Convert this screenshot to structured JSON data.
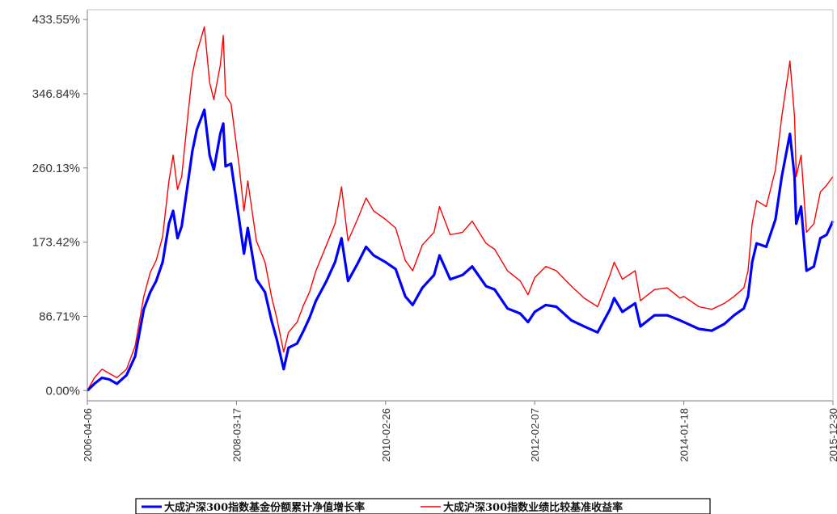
{
  "chart_data": {
    "type": "line",
    "title": "",
    "xlabel": "",
    "ylabel": "",
    "y_axis": {
      "ticks": [
        0,
        86.71,
        173.42,
        260.13,
        346.84,
        433.55
      ],
      "tick_labels": [
        "0.00%",
        "86.71%",
        "173.42%",
        "260.13%",
        "346.84%",
        "433.55%"
      ],
      "ylim": [
        -12,
        445
      ]
    },
    "x_axis": {
      "ticks": [
        "2006-04-06",
        "2008-03-17",
        "2010-02-26",
        "2012-02-07",
        "2014-01-18",
        "2015-12-30"
      ],
      "xlim": [
        "2006-04-06",
        "2015-12-30"
      ]
    },
    "grid": false,
    "legend_position": "bottom-center",
    "series": [
      {
        "name": "大成沪深300指数基金份额累计净值增长率",
        "color": "#0000ff",
        "points": [
          [
            "2006-04-06",
            0
          ],
          [
            "2006-05-10",
            8
          ],
          [
            "2006-06-15",
            15
          ],
          [
            "2006-07-20",
            13
          ],
          [
            "2006-08-25",
            8
          ],
          [
            "2006-10-10",
            18
          ],
          [
            "2006-11-20",
            40
          ],
          [
            "2006-12-31",
            95
          ],
          [
            "2007-01-31",
            115
          ],
          [
            "2007-02-28",
            128
          ],
          [
            "2007-03-31",
            150
          ],
          [
            "2007-04-30",
            195
          ],
          [
            "2007-05-20",
            210
          ],
          [
            "2007-06-10",
            178
          ],
          [
            "2007-06-30",
            192
          ],
          [
            "2007-07-31",
            245
          ],
          [
            "2007-08-20",
            280
          ],
          [
            "2007-09-10",
            305
          ],
          [
            "2007-10-16",
            328
          ],
          [
            "2007-11-10",
            275
          ],
          [
            "2007-11-30",
            258
          ],
          [
            "2007-12-31",
            300
          ],
          [
            "2008-01-14",
            312
          ],
          [
            "2008-01-25",
            262
          ],
          [
            "2008-02-20",
            265
          ],
          [
            "2008-03-31",
            198
          ],
          [
            "2008-04-22",
            160
          ],
          [
            "2008-05-10",
            190
          ],
          [
            "2008-06-20",
            130
          ],
          [
            "2008-07-31",
            115
          ],
          [
            "2008-08-31",
            82
          ],
          [
            "2008-09-25",
            60
          ],
          [
            "2008-10-28",
            25
          ],
          [
            "2008-11-20",
            50
          ],
          [
            "2008-12-31",
            55
          ],
          [
            "2009-01-31",
            70
          ],
          [
            "2009-02-28",
            85
          ],
          [
            "2009-03-31",
            105
          ],
          [
            "2009-05-20",
            128
          ],
          [
            "2009-06-30",
            150
          ],
          [
            "2009-07-31",
            178
          ],
          [
            "2009-08-31",
            128
          ],
          [
            "2009-10-15",
            148
          ],
          [
            "2009-11-25",
            168
          ],
          [
            "2009-12-31",
            158
          ],
          [
            "2010-02-26",
            150
          ],
          [
            "2010-04-15",
            142
          ],
          [
            "2010-05-31",
            110
          ],
          [
            "2010-07-05",
            100
          ],
          [
            "2010-08-20",
            120
          ],
          [
            "2010-10-15",
            135
          ],
          [
            "2010-11-10",
            158
          ],
          [
            "2010-12-31",
            130
          ],
          [
            "2011-02-28",
            135
          ],
          [
            "2011-04-15",
            145
          ],
          [
            "2011-06-20",
            122
          ],
          [
            "2011-07-31",
            118
          ],
          [
            "2011-09-30",
            96
          ],
          [
            "2011-11-30",
            90
          ],
          [
            "2012-01-06",
            80
          ],
          [
            "2012-02-07",
            92
          ],
          [
            "2012-03-31",
            100
          ],
          [
            "2012-05-20",
            98
          ],
          [
            "2012-07-31",
            82
          ],
          [
            "2012-09-30",
            75
          ],
          [
            "2012-12-03",
            68
          ],
          [
            "2013-01-31",
            95
          ],
          [
            "2013-02-20",
            108
          ],
          [
            "2013-03-31",
            92
          ],
          [
            "2013-05-31",
            102
          ],
          [
            "2013-06-25",
            75
          ],
          [
            "2013-08-31",
            88
          ],
          [
            "2013-10-31",
            88
          ],
          [
            "2013-12-31",
            82
          ],
          [
            "2014-01-18",
            80
          ],
          [
            "2014-03-31",
            72
          ],
          [
            "2014-05-31",
            70
          ],
          [
            "2014-07-31",
            78
          ],
          [
            "2014-09-15",
            88
          ],
          [
            "2014-10-31",
            96
          ],
          [
            "2014-11-20",
            110
          ],
          [
            "2014-12-10",
            150
          ],
          [
            "2014-12-31",
            172
          ],
          [
            "2015-02-15",
            168
          ],
          [
            "2015-03-31",
            200
          ],
          [
            "2015-04-30",
            250
          ],
          [
            "2015-06-08",
            300
          ],
          [
            "2015-06-30",
            250
          ],
          [
            "2015-07-08",
            195
          ],
          [
            "2015-07-31",
            215
          ],
          [
            "2015-08-26",
            140
          ],
          [
            "2015-09-30",
            145
          ],
          [
            "2015-10-31",
            178
          ],
          [
            "2015-11-30",
            182
          ],
          [
            "2015-12-30",
            198
          ]
        ]
      },
      {
        "name": "大成沪深300指数业绩比较基准收益率",
        "color": "#ff0000",
        "points": [
          [
            "2006-04-06",
            0
          ],
          [
            "2006-05-10",
            15
          ],
          [
            "2006-06-15",
            25
          ],
          [
            "2006-07-20",
            20
          ],
          [
            "2006-08-25",
            15
          ],
          [
            "2006-10-10",
            25
          ],
          [
            "2006-11-20",
            52
          ],
          [
            "2006-12-31",
            110
          ],
          [
            "2007-01-31",
            138
          ],
          [
            "2007-02-28",
            152
          ],
          [
            "2007-03-31",
            180
          ],
          [
            "2007-04-30",
            245
          ],
          [
            "2007-05-20",
            275
          ],
          [
            "2007-06-10",
            235
          ],
          [
            "2007-06-30",
            250
          ],
          [
            "2007-07-31",
            325
          ],
          [
            "2007-08-20",
            370
          ],
          [
            "2007-09-10",
            395
          ],
          [
            "2007-10-16",
            425
          ],
          [
            "2007-11-10",
            360
          ],
          [
            "2007-11-30",
            340
          ],
          [
            "2007-12-31",
            380
          ],
          [
            "2008-01-14",
            415
          ],
          [
            "2008-01-25",
            345
          ],
          [
            "2008-02-20",
            335
          ],
          [
            "2008-03-31",
            260
          ],
          [
            "2008-04-22",
            210
          ],
          [
            "2008-05-10",
            245
          ],
          [
            "2008-06-20",
            175
          ],
          [
            "2008-07-31",
            150
          ],
          [
            "2008-08-31",
            110
          ],
          [
            "2008-09-25",
            85
          ],
          [
            "2008-10-28",
            45
          ],
          [
            "2008-11-20",
            68
          ],
          [
            "2008-12-31",
            80
          ],
          [
            "2009-01-31",
            100
          ],
          [
            "2009-02-28",
            115
          ],
          [
            "2009-03-31",
            140
          ],
          [
            "2009-05-20",
            170
          ],
          [
            "2009-06-30",
            195
          ],
          [
            "2009-07-31",
            238
          ],
          [
            "2009-08-31",
            175
          ],
          [
            "2009-10-15",
            200
          ],
          [
            "2009-11-25",
            225
          ],
          [
            "2009-12-31",
            210
          ],
          [
            "2010-02-26",
            200
          ],
          [
            "2010-04-15",
            190
          ],
          [
            "2010-05-31",
            152
          ],
          [
            "2010-07-05",
            140
          ],
          [
            "2010-08-20",
            170
          ],
          [
            "2010-10-15",
            185
          ],
          [
            "2010-11-10",
            215
          ],
          [
            "2010-12-31",
            182
          ],
          [
            "2011-02-28",
            185
          ],
          [
            "2011-04-15",
            198
          ],
          [
            "2011-06-20",
            172
          ],
          [
            "2011-07-31",
            165
          ],
          [
            "2011-09-30",
            140
          ],
          [
            "2011-11-30",
            128
          ],
          [
            "2012-01-06",
            112
          ],
          [
            "2012-02-07",
            132
          ],
          [
            "2012-03-31",
            145
          ],
          [
            "2012-05-20",
            140
          ],
          [
            "2012-07-31",
            122
          ],
          [
            "2012-09-30",
            108
          ],
          [
            "2012-12-03",
            98
          ],
          [
            "2013-01-31",
            135
          ],
          [
            "2013-02-20",
            150
          ],
          [
            "2013-03-31",
            130
          ],
          [
            "2013-05-31",
            140
          ],
          [
            "2013-06-25",
            105
          ],
          [
            "2013-08-31",
            118
          ],
          [
            "2013-10-31",
            120
          ],
          [
            "2013-12-31",
            108
          ],
          [
            "2014-01-18",
            110
          ],
          [
            "2014-03-31",
            98
          ],
          [
            "2014-05-31",
            95
          ],
          [
            "2014-07-31",
            102
          ],
          [
            "2014-09-15",
            110
          ],
          [
            "2014-10-31",
            120
          ],
          [
            "2014-11-20",
            140
          ],
          [
            "2014-12-10",
            195
          ],
          [
            "2014-12-31",
            222
          ],
          [
            "2015-02-15",
            215
          ],
          [
            "2015-03-31",
            258
          ],
          [
            "2015-04-30",
            320
          ],
          [
            "2015-06-08",
            385
          ],
          [
            "2015-06-30",
            320
          ],
          [
            "2015-07-08",
            250
          ],
          [
            "2015-07-31",
            275
          ],
          [
            "2015-08-26",
            185
          ],
          [
            "2015-09-30",
            195
          ],
          [
            "2015-10-31",
            232
          ],
          [
            "2015-11-30",
            240
          ],
          [
            "2015-12-30",
            250
          ]
        ]
      }
    ]
  }
}
